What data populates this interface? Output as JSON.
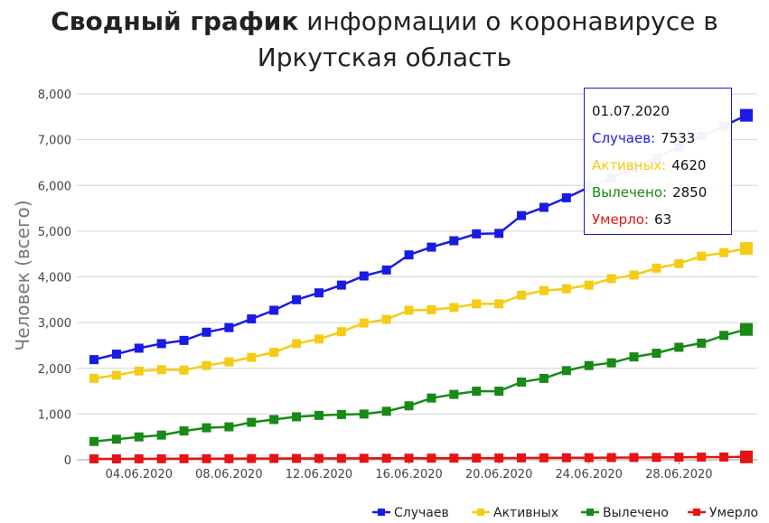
{
  "title": {
    "bold": "Сводный график",
    "rest": " информации о коронавирусе в",
    "line2": "Иркутская область"
  },
  "chart_data": {
    "type": "line",
    "ylabel": "Человек (всего)",
    "ylim": [
      0,
      8000
    ],
    "yticks": [
      "0",
      "1,000",
      "2,000",
      "3,000",
      "4,000",
      "5,000",
      "6,000",
      "7,000",
      "8,000"
    ],
    "xtick_labels": [
      "04.06.2020",
      "08.06.2020",
      "12.06.2020",
      "16.06.2020",
      "20.06.2020",
      "24.06.2020",
      "28.06.2020"
    ],
    "x": [
      "02.06.2020",
      "03.06.2020",
      "04.06.2020",
      "05.06.2020",
      "06.06.2020",
      "07.06.2020",
      "08.06.2020",
      "09.06.2020",
      "10.06.2020",
      "11.06.2020",
      "12.06.2020",
      "13.06.2020",
      "14.06.2020",
      "15.06.2020",
      "16.06.2020",
      "17.06.2020",
      "18.06.2020",
      "19.06.2020",
      "20.06.2020",
      "21.06.2020",
      "22.06.2020",
      "23.06.2020",
      "24.06.2020",
      "25.06.2020",
      "26.06.2020",
      "27.06.2020",
      "28.06.2020",
      "29.06.2020",
      "30.06.2020",
      "01.07.2020"
    ],
    "grid": true,
    "legend_position": "bottom-right",
    "series": [
      {
        "name": "Случаев",
        "color": "#1a1ae6",
        "values": [
          2190,
          2310,
          2440,
          2540,
          2610,
          2790,
          2890,
          3080,
          3270,
          3500,
          3650,
          3820,
          4020,
          4150,
          4480,
          4650,
          4790,
          4940,
          4950,
          5340,
          5520,
          5730,
          5960,
          6160,
          6380,
          6600,
          6840,
          7080,
          7300,
          7533
        ]
      },
      {
        "name": "Активных",
        "color": "#f5cc14",
        "values": [
          1780,
          1850,
          1940,
          1970,
          1960,
          2060,
          2140,
          2240,
          2350,
          2540,
          2640,
          2800,
          2990,
          3070,
          3270,
          3280,
          3330,
          3410,
          3410,
          3600,
          3700,
          3740,
          3820,
          3960,
          4040,
          4190,
          4290,
          4450,
          4530,
          4620
        ]
      },
      {
        "name": "Вылечено",
        "color": "#178a17",
        "values": [
          400,
          450,
          500,
          540,
          630,
          700,
          720,
          820,
          880,
          940,
          970,
          990,
          1000,
          1060,
          1180,
          1350,
          1430,
          1500,
          1500,
          1700,
          1780,
          1950,
          2060,
          2120,
          2250,
          2330,
          2460,
          2550,
          2720,
          2850
        ]
      },
      {
        "name": "Умерло",
        "color": "#e61414",
        "values": [
          20,
          20,
          21,
          22,
          23,
          24,
          25,
          27,
          28,
          29,
          30,
          31,
          32,
          33,
          34,
          35,
          36,
          37,
          38,
          40,
          42,
          44,
          46,
          48,
          50,
          52,
          55,
          58,
          60,
          63
        ]
      }
    ]
  },
  "tooltip": {
    "date": "01.07.2020",
    "rows": [
      {
        "label": "Случаев:",
        "value": "7533",
        "color": "#1a1ae6"
      },
      {
        "label": "Активных:",
        "value": "4620",
        "color": "#f5cc14"
      },
      {
        "label": "Вылечено:",
        "value": "2850",
        "color": "#178a17"
      },
      {
        "label": "Умерло:",
        "value": "63",
        "color": "#e61414"
      }
    ]
  }
}
